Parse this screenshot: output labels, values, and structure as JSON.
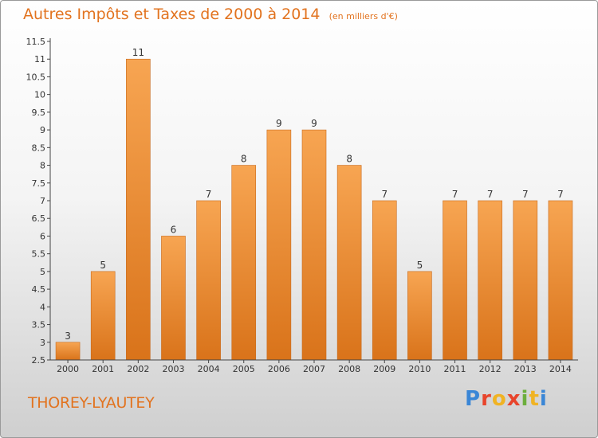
{
  "header": {
    "title": "Autres Impôts et Taxes de 2000 à 2014",
    "unit": "(en milliers d'€)"
  },
  "footer": {
    "place": "THOREY-LYAUTEY",
    "logo": [
      "P",
      "r",
      "o",
      "x",
      "i",
      "t",
      "i"
    ],
    "logo_colors": [
      "#3a86d6",
      "#e8442b",
      "#f0b323",
      "#e8442b",
      "#6cae3c",
      "#f0b323",
      "#3a86d6"
    ]
  },
  "chart_data": {
    "type": "bar",
    "categories": [
      "2000",
      "2001",
      "2002",
      "2003",
      "2004",
      "2005",
      "2006",
      "2007",
      "2008",
      "2009",
      "2010",
      "2011",
      "2012",
      "2013",
      "2014"
    ],
    "values": [
      3,
      5,
      11,
      6,
      7,
      8,
      9,
      9,
      8,
      7,
      5,
      7,
      7,
      7,
      7
    ],
    "title": "Autres Impôts et Taxes de 2000 à 2014",
    "xlabel": "",
    "ylabel": "",
    "ylim": [
      2.5,
      11.5
    ],
    "yticks": [
      "2.5",
      "3",
      "3.5",
      "4",
      "4.5",
      "5",
      "5.5",
      "6",
      "6.5",
      "7",
      "7.5",
      "8",
      "8.5",
      "9",
      "9.5",
      "10",
      "10.5",
      "11",
      "11.5"
    ],
    "grid": false,
    "colors": {
      "bar_top": "#f7a552",
      "bar_bottom": "#d9731a",
      "bar_edge": "#c86a1c",
      "axis": "#444444"
    }
  }
}
